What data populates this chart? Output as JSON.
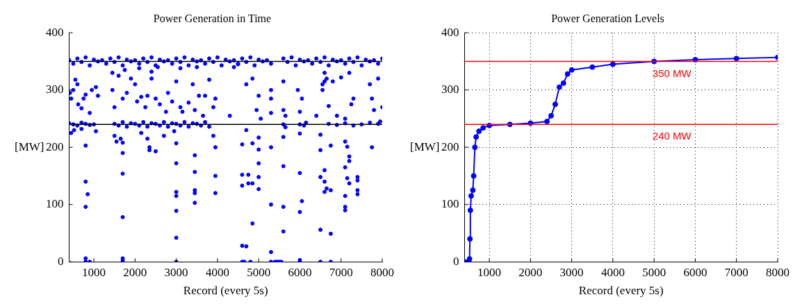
{
  "chart_data": [
    {
      "type": "scatter",
      "title": "Power Generation in Time",
      "xlabel": "Record (every 5s)",
      "ylabel": "[MW]",
      "xlim": [
        400,
        8000
      ],
      "xticks": [
        1000,
        2000,
        3000,
        4000,
        5000,
        6000,
        7000,
        8000
      ],
      "ylim": [
        0,
        400
      ],
      "yticks": [
        0,
        100,
        200,
        300,
        400
      ],
      "grid": false,
      "marker": "circle",
      "ref_lines": [
        {
          "axis": "y",
          "value": 350,
          "color": "#000000"
        },
        {
          "axis": "y",
          "value": 240,
          "color": "#000000"
        }
      ],
      "series": [
        {
          "color": "#0000ff",
          "x": [
            400,
            500,
            600,
            700,
            800,
            900,
            1000,
            1100,
            1200,
            1300,
            1400,
            1500,
            1600,
            1700,
            1800,
            1900,
            2000,
            2100,
            2200,
            2300,
            2400,
            2500,
            2600,
            2700,
            2800,
            2900,
            3000,
            3100,
            3200,
            3300,
            3400,
            3500,
            3600,
            3700,
            3800,
            3900,
            4000,
            4100,
            4200,
            4300,
            4400,
            4500,
            4600,
            4700,
            4800,
            4900,
            5000,
            5100,
            5200,
            5300,
            5600,
            5700,
            5800,
            5900,
            6000,
            6100,
            6200,
            6300,
            6400,
            6500,
            6600,
            6700,
            6800,
            6900,
            7000,
            7100,
            7200,
            7300,
            7400,
            7500,
            7600,
            7700,
            7800,
            7900,
            8000,
            1450,
            1600,
            1750,
            2100,
            2400,
            2550,
            3100,
            3500,
            4400,
            4500,
            6600,
            6550,
            6650,
            6600,
            400,
            500,
            600,
            700,
            800,
            900,
            1000,
            1500,
            1600,
            1700,
            1800,
            1900,
            2000,
            2100,
            2200,
            2300,
            2400,
            2500,
            2600,
            2700,
            2800,
            2900,
            3000,
            3100,
            3200,
            3300,
            3400,
            3500,
            3600,
            3700,
            3800,
            5600,
            5650,
            6000,
            6100,
            6150,
            6700,
            6900,
            7100,
            7300,
            7500,
            7700,
            7900,
            7950,
            420,
            450,
            500,
            550,
            600,
            620,
            700,
            750,
            800,
            900,
            950,
            1050,
            1100,
            1450,
            1500,
            1700,
            1800,
            1900,
            2000,
            2050,
            2150,
            2250,
            2300,
            2400,
            2500,
            2600,
            2750,
            2800,
            2900,
            3000,
            3100,
            3150,
            3300,
            3400,
            3450,
            3550,
            3650,
            3700,
            3800,
            3900,
            3950,
            4300,
            4700,
            4850,
            4950,
            5000,
            5050,
            5300,
            5300,
            5300,
            5600,
            5650,
            5600,
            5950,
            6000,
            6050,
            6400,
            6550,
            6700,
            6800,
            6900,
            7000,
            7100,
            7200,
            7250,
            7300,
            7700,
            7750,
            7800,
            7900,
            8000,
            450,
            520,
            700,
            1050,
            1500,
            1550,
            1650,
            1700,
            1700,
            2150,
            2300,
            2350,
            2350,
            2500,
            2700,
            2950,
            3000,
            3000,
            3000,
            3000,
            3000,
            3000,
            3000,
            3450,
            3450,
            3450,
            3450,
            3450,
            3900,
            3950,
            3950,
            3950,
            4600,
            4600,
            4600,
            4600,
            4600,
            4650,
            4700,
            4700,
            4750,
            4750,
            4850,
            4850,
            4850,
            4800,
            5000,
            5000,
            5000,
            5000,
            5000,
            5300,
            5300,
            5300,
            5300,
            5400,
            5450,
            5500,
            5550,
            5600,
            5600,
            5600,
            5600,
            6000,
            6000,
            6050,
            6000,
            6000,
            6000,
            6500,
            6500,
            6500,
            6500,
            6500,
            6600,
            6600,
            6600,
            6650,
            6750,
            6750,
            6750,
            6750,
            7100,
            7100,
            7100,
            7100,
            7100,
            7150,
            7200,
            7200,
            7150,
            7200,
            7400,
            7400,
            7400,
            7400,
            7750,
            800,
            800,
            800,
            850,
            800,
            800,
            900,
            1700,
            1700,
            1700,
            1700
          ],
          "values": [
            352,
            346,
            355,
            349,
            357,
            343,
            353,
            350,
            352,
            346,
            355,
            349,
            357,
            343,
            353,
            350,
            352,
            346,
            355,
            349,
            357,
            343,
            353,
            350,
            352,
            346,
            355,
            349,
            357,
            343,
            353,
            350,
            352,
            346,
            355,
            349,
            357,
            343,
            353,
            350,
            352,
            346,
            355,
            349,
            357,
            343,
            353,
            350,
            352,
            346,
            355,
            349,
            357,
            343,
            353,
            350,
            352,
            346,
            355,
            349,
            357,
            343,
            353,
            350,
            352,
            346,
            355,
            349,
            357,
            343,
            353,
            350,
            352,
            346,
            355,
            330,
            325,
            335,
            338,
            332,
            340,
            338,
            340,
            340,
            345,
            315,
            310,
            320,
            330,
            242,
            240,
            238,
            243,
            241,
            239,
            240,
            241,
            238,
            244,
            236,
            242,
            241,
            238,
            244,
            236,
            242,
            241,
            238,
            244,
            236,
            242,
            241,
            238,
            244,
            236,
            242,
            241,
            238,
            244,
            236,
            240,
            235,
            240,
            238,
            243,
            241,
            239,
            242,
            238,
            240,
            243,
            241,
            245,
            295,
            285,
            300,
            318,
            310,
            275,
            268,
            285,
            292,
            260,
            300,
            305,
            290,
            300,
            270,
            285,
            295,
            320,
            310,
            280,
            288,
            270,
            290,
            320,
            285,
            275,
            262,
            295,
            280,
            315,
            270,
            262,
            278,
            310,
            265,
            290,
            255,
            290,
            318,
            270,
            285,
            255,
            310,
            320,
            265,
            290,
            250,
            300,
            285,
            260,
            315,
            255,
            265,
            300,
            262,
            285,
            255,
            300,
            272,
            315,
            255,
            322,
            250,
            330,
            275,
            285,
            310,
            285,
            265,
            320,
            270,
            225,
            230,
            232,
            228,
            220,
            210,
            215,
            190,
            208,
            225,
            215,
            200,
            195,
            193,
            220,
            228,
            207,
            172,
            122,
            115,
            89,
            42,
            0,
            186,
            157,
            125,
            120,
            103,
            220,
            200,
            150,
            120,
            205,
            152,
            133,
            28,
            0,
            0,
            230,
            27,
            152,
            137,
            207,
            137,
            67,
            0,
            217,
            196,
            172,
            148,
            127,
            200,
            100,
            17,
            0,
            0,
            0,
            0,
            0,
            218,
            167,
            96,
            53,
            224,
            155,
            106,
            87,
            3,
            0,
            222,
            195,
            148,
            56,
            0,
            160,
            140,
            122,
            128,
            203,
            125,
            49,
            0,
            210,
            165,
            115,
            96,
            90,
            201,
            184,
            176,
            146,
            137,
            148,
            142,
            125,
            118,
            200,
            203,
            140,
            96,
            118,
            6,
            0,
            0,
            78,
            154,
            6,
            2
          ]
        }
      ]
    },
    {
      "type": "line",
      "title": "Power Generation Levels",
      "xlabel": "Record (every 5s)",
      "ylabel": "[MW]",
      "xlim": [
        400,
        8000
      ],
      "xticks": [
        1000,
        2000,
        3000,
        4000,
        5000,
        6000,
        7000,
        8000
      ],
      "ylim": [
        0,
        400
      ],
      "yticks": [
        0,
        100,
        200,
        300,
        400
      ],
      "grid": true,
      "marker": "circle",
      "ref_lines": [
        {
          "axis": "y",
          "value": 350,
          "label": "350 MW",
          "color": "#ff0000"
        },
        {
          "axis": "y",
          "value": 240,
          "label": "240 MW",
          "color": "#ff0000"
        }
      ],
      "series": [
        {
          "color": "#0000ff",
          "x": [
            400,
            500,
            520,
            530,
            540,
            560,
            600,
            620,
            650,
            680,
            750,
            850,
            1000,
            1500,
            2000,
            2400,
            2500,
            2600,
            2700,
            2800,
            2900,
            3000,
            3500,
            4000,
            5000,
            6000,
            7000,
            8000
          ],
          "values": [
            0,
            0,
            5,
            40,
            90,
            115,
            125,
            150,
            200,
            218,
            228,
            234,
            238,
            240,
            242,
            245,
            255,
            275,
            305,
            312,
            328,
            335,
            340,
            345,
            350,
            353,
            355,
            357
          ]
        }
      ]
    }
  ]
}
